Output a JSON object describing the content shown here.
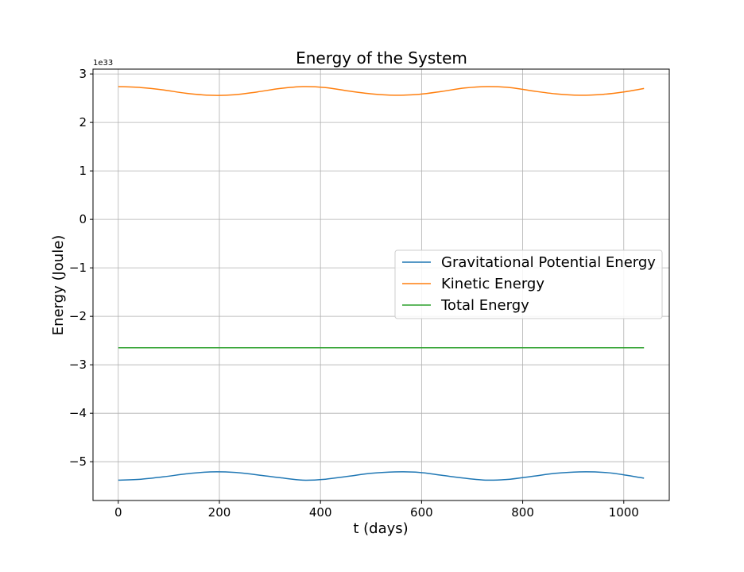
{
  "chart_data": {
    "type": "line",
    "title": "Energy of the System",
    "xlabel": "t (days)",
    "ylabel": "Energy (Joule)",
    "y_offset_label": "1e33",
    "xlim": [
      -50,
      1090
    ],
    "ylim": [
      -5.8,
      3.1
    ],
    "x_ticks": [
      0,
      200,
      400,
      600,
      800,
      1000
    ],
    "x_tick_labels": [
      "0",
      "200",
      "400",
      "600",
      "800",
      "1000"
    ],
    "y_ticks": [
      -5,
      -4,
      -3,
      -2,
      -1,
      0,
      1,
      2,
      3
    ],
    "y_tick_labels": [
      "−5",
      "−4",
      "−3",
      "−2",
      "−1",
      "0",
      "1",
      "2",
      "3"
    ],
    "grid": true,
    "legend_position": "center-right",
    "series": [
      {
        "name": "Gravitational Potential Energy",
        "color": "#1f77b4",
        "x": [
          0,
          45,
          90,
          135,
          182,
          230,
          275,
          320,
          365,
          410,
          455,
          500,
          547,
          595,
          640,
          685,
          730,
          775,
          820,
          865,
          912,
          960,
          1000,
          1040
        ],
        "y": [
          -5.38,
          -5.36,
          -5.31,
          -5.25,
          -5.21,
          -5.22,
          -5.27,
          -5.33,
          -5.38,
          -5.36,
          -5.3,
          -5.24,
          -5.21,
          -5.22,
          -5.28,
          -5.34,
          -5.38,
          -5.36,
          -5.3,
          -5.24,
          -5.21,
          -5.22,
          -5.27,
          -5.34
        ]
      },
      {
        "name": "Kinetic Energy",
        "color": "#ff7f0e",
        "x": [
          0,
          45,
          90,
          135,
          182,
          230,
          275,
          320,
          365,
          410,
          455,
          500,
          547,
          595,
          640,
          685,
          730,
          775,
          820,
          865,
          912,
          960,
          1000,
          1040
        ],
        "y": [
          2.74,
          2.72,
          2.67,
          2.6,
          2.56,
          2.57,
          2.63,
          2.7,
          2.74,
          2.72,
          2.65,
          2.59,
          2.56,
          2.58,
          2.64,
          2.71,
          2.74,
          2.72,
          2.65,
          2.59,
          2.56,
          2.58,
          2.63,
          2.7
        ]
      },
      {
        "name": "Total Energy",
        "color": "#2ca02c",
        "x": [
          0,
          1040
        ],
        "y": [
          -2.65,
          -2.65
        ]
      }
    ]
  }
}
